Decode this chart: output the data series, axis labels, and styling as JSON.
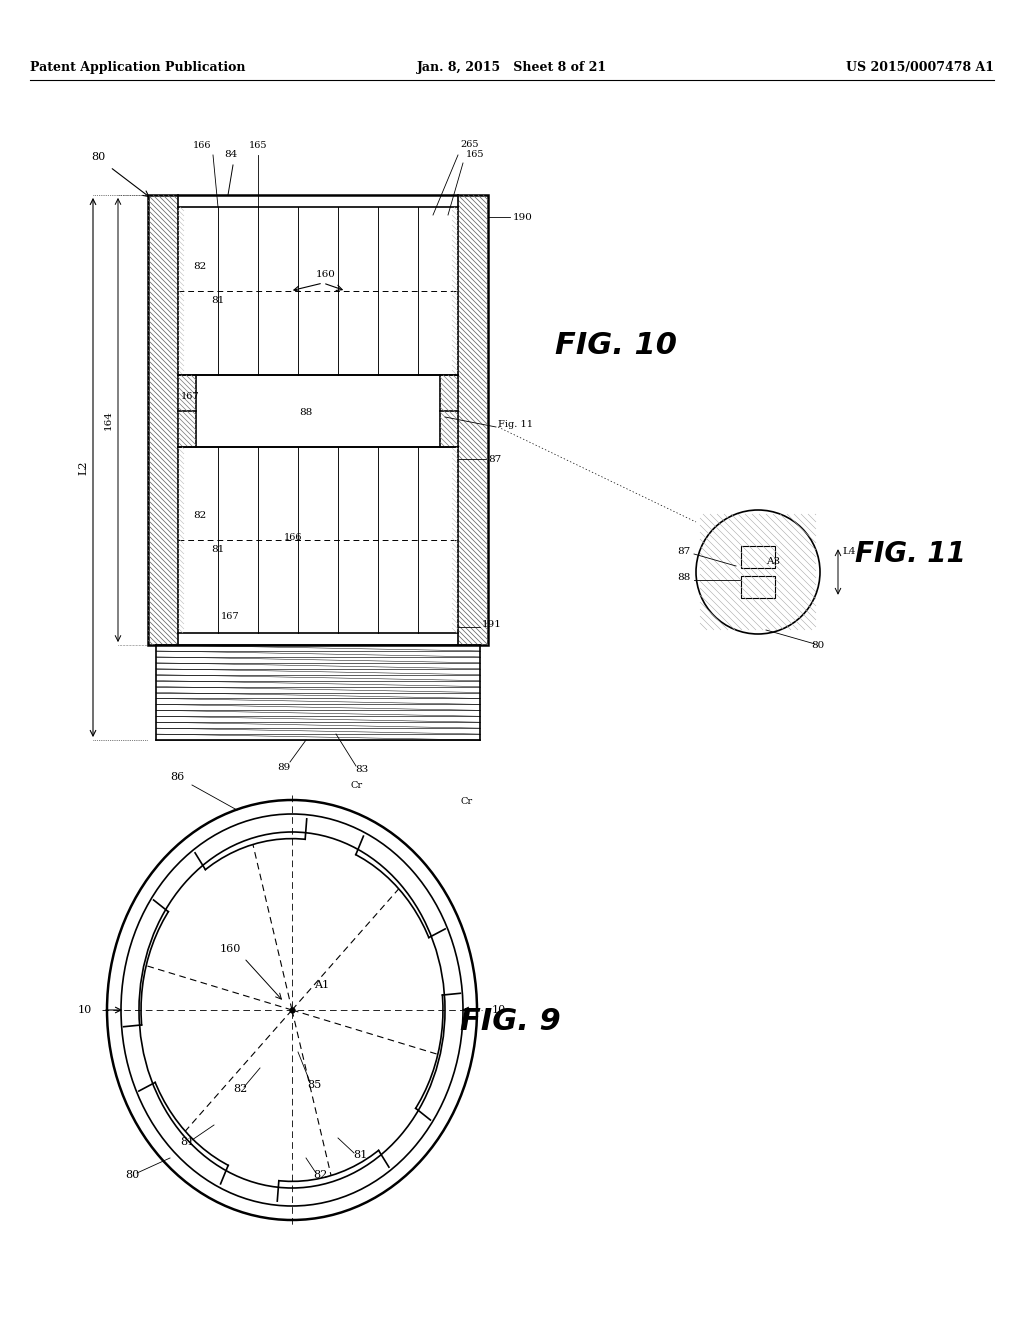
{
  "bg_color": "#ffffff",
  "header_left": "Patent Application Publication",
  "header_mid": "Jan. 8, 2015   Sheet 8 of 21",
  "header_right": "US 2015/0007478 A1",
  "fig10_title": "FIG. 10",
  "fig11_title": "FIG. 11",
  "fig9_title": "FIG. 9",
  "text_color": "#000000",
  "line_color": "#000000"
}
